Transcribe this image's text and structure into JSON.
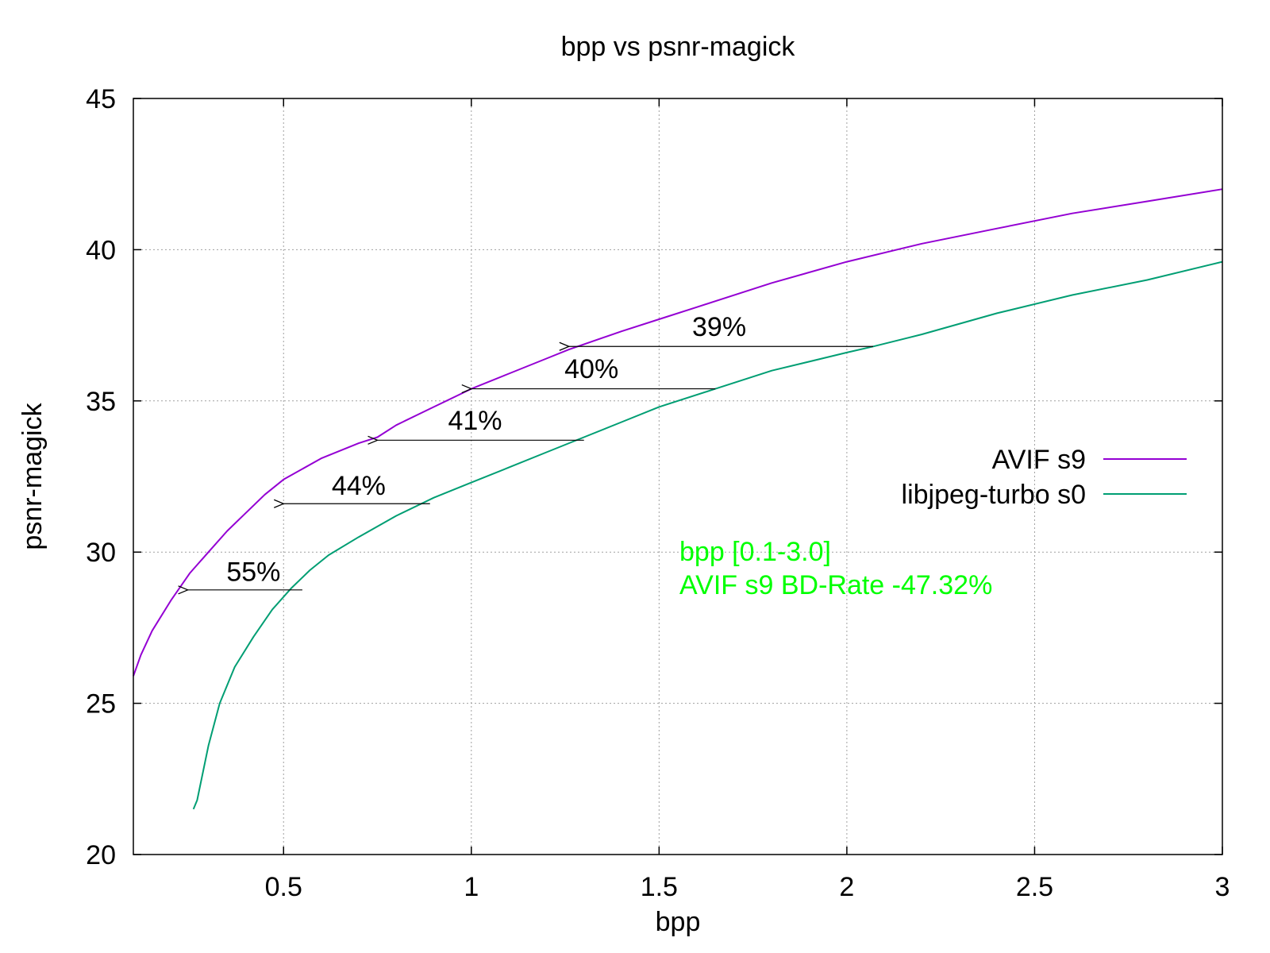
{
  "chart_data": {
    "type": "line",
    "title": "bpp vs psnr-magick",
    "xlabel": "bpp",
    "ylabel": "psnr-magick",
    "xlim": [
      0.1,
      3.0
    ],
    "ylim": [
      20,
      45
    ],
    "x_ticks": [
      {
        "value": 0.5,
        "label": "0.5"
      },
      {
        "value": 1.0,
        "label": "1"
      },
      {
        "value": 1.5,
        "label": "1.5"
      },
      {
        "value": 2.0,
        "label": "2"
      },
      {
        "value": 2.5,
        "label": "2.5"
      },
      {
        "value": 3.0,
        "label": "3"
      }
    ],
    "y_ticks": [
      {
        "value": 20,
        "label": "20"
      },
      {
        "value": 25,
        "label": "25"
      },
      {
        "value": 30,
        "label": "30"
      },
      {
        "value": 35,
        "label": "35"
      },
      {
        "value": 40,
        "label": "40"
      },
      {
        "value": 45,
        "label": "45"
      }
    ],
    "grid": true,
    "legend_position": "right",
    "series": [
      {
        "name": "AVIF s9",
        "color": "#9400d3",
        "x": [
          0.1,
          0.12,
          0.15,
          0.2,
          0.25,
          0.3,
          0.35,
          0.4,
          0.45,
          0.5,
          0.6,
          0.7,
          0.75,
          0.8,
          0.9,
          1.0,
          1.1,
          1.2,
          1.26,
          1.4,
          1.5,
          1.6,
          1.8,
          2.0,
          2.2,
          2.4,
          2.6,
          2.8,
          3.0
        ],
        "y": [
          25.9,
          26.6,
          27.4,
          28.4,
          29.3,
          30.0,
          30.7,
          31.3,
          31.9,
          32.4,
          33.1,
          33.6,
          33.8,
          34.2,
          34.8,
          35.4,
          35.9,
          36.4,
          36.7,
          37.3,
          37.7,
          38.1,
          38.9,
          39.6,
          40.2,
          40.7,
          41.2,
          41.6,
          42.0
        ]
      },
      {
        "name": "libjpeg-turbo s0",
        "color": "#009e73",
        "x": [
          0.26,
          0.27,
          0.3,
          0.33,
          0.37,
          0.42,
          0.47,
          0.52,
          0.57,
          0.62,
          0.7,
          0.8,
          0.9,
          1.0,
          1.1,
          1.2,
          1.3,
          1.4,
          1.5,
          1.65,
          1.8,
          2.0,
          2.07,
          2.2,
          2.4,
          2.6,
          2.8,
          3.0
        ],
        "y": [
          21.5,
          21.8,
          23.6,
          25.0,
          26.2,
          27.2,
          28.1,
          28.8,
          29.4,
          29.9,
          30.5,
          31.2,
          31.8,
          32.3,
          32.8,
          33.3,
          33.8,
          34.3,
          34.8,
          35.4,
          36.0,
          36.6,
          36.8,
          37.2,
          37.9,
          38.5,
          39.0,
          39.6
        ]
      }
    ],
    "annotations": [
      {
        "label": "55%",
        "arrow_from": [
          0.55,
          28.75
        ],
        "arrow_to": [
          0.245,
          28.75
        ],
        "text_at": [
          0.42,
          29.05
        ]
      },
      {
        "label": "44%",
        "arrow_from": [
          0.89,
          31.6
        ],
        "arrow_to": [
          0.5,
          31.6
        ],
        "text_at": [
          0.7,
          31.9
        ]
      },
      {
        "label": "41%",
        "arrow_from": [
          1.3,
          33.7
        ],
        "arrow_to": [
          0.75,
          33.7
        ],
        "text_at": [
          1.01,
          34.05
        ]
      },
      {
        "label": "40%",
        "arrow_from": [
          1.65,
          35.4
        ],
        "arrow_to": [
          1.0,
          35.4
        ],
        "text_at": [
          1.32,
          35.75
        ]
      },
      {
        "label": "39%",
        "arrow_from": [
          2.07,
          36.8
        ],
        "arrow_to": [
          1.26,
          36.8
        ],
        "text_at": [
          1.66,
          37.15
        ]
      }
    ],
    "info_text": {
      "line1": "bpp [0.1-3.0]",
      "line2": "AVIF s9 BD-Rate -47.32%",
      "color": "#00ff00"
    }
  }
}
